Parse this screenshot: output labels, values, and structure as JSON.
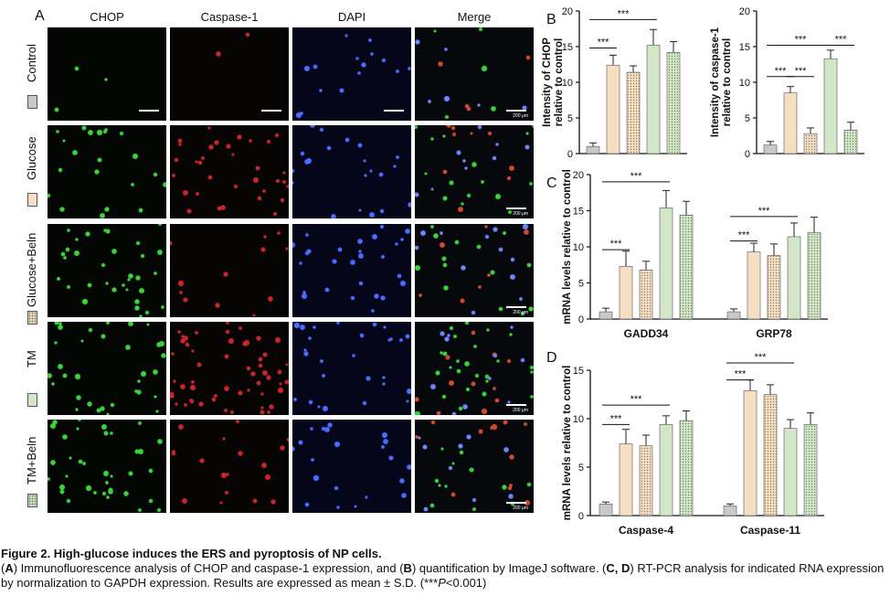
{
  "panel_a": {
    "letter": "A",
    "columns": [
      "CHOP",
      "Caspase-1",
      "DAPI",
      "Merge"
    ],
    "rows": [
      "Control",
      "Glucose",
      "Glucose+Beln",
      "TM",
      "TM+Beln"
    ],
    "scale_bar_label": "200 μm"
  },
  "groups": [
    {
      "name": "Control",
      "fill": "#c9c9c9",
      "pattern": "solid"
    },
    {
      "name": "Glucose",
      "fill": "#f4dfc3",
      "pattern": "solid"
    },
    {
      "name": "Glucose+Beln",
      "fill": "#f4dfc3",
      "pattern": "dots"
    },
    {
      "name": "TM",
      "fill": "#d3e7c8",
      "pattern": "solid"
    },
    {
      "name": "TM+Beln",
      "fill": "#d3e7c8",
      "pattern": "dots"
    }
  ],
  "captions": {
    "title": "Figure 2. High-glucose induces the ERS and pyroptosis of NP cells.",
    "body_parts": [
      {
        "text": "(",
        "bold": false,
        "italic": false
      },
      {
        "text": "A",
        "bold": true,
        "italic": false
      },
      {
        "text": ") Immunofluorescence analysis of CHOP and caspase-1 expression, and (",
        "bold": false,
        "italic": false
      },
      {
        "text": "B",
        "bold": true,
        "italic": false
      },
      {
        "text": ") quantification by ImageJ software. (",
        "bold": false,
        "italic": false
      },
      {
        "text": "C, D",
        "bold": true,
        "italic": false
      },
      {
        "text": ") RT-PCR analysis for indicated RNA expression by normalization to GAPDH expression. Results are expressed as mean ± S.D. (***",
        "bold": false,
        "italic": false
      },
      {
        "text": "P",
        "bold": false,
        "italic": true
      },
      {
        "text": "<0.001)",
        "bold": false,
        "italic": false
      }
    ]
  },
  "chart_data": [
    {
      "id": "B1",
      "panel_letter": "B",
      "type": "bar",
      "ylabel": "Intensity of CHOP relative to control",
      "ylim": [
        0,
        20
      ],
      "yticks": [
        0,
        5,
        10,
        15,
        20
      ],
      "groups": [
        {
          "categories": [
            "Control",
            "Glucose",
            "Glucose+Beln",
            "TM",
            "TM+Beln"
          ],
          "values": [
            1.0,
            12.4,
            11.4,
            15.2,
            14.2
          ],
          "errors": [
            0.5,
            1.4,
            0.9,
            2.2,
            1.5
          ]
        }
      ],
      "significance": [
        {
          "text": "***",
          "from": 0,
          "to": 1,
          "y": 14.8
        },
        {
          "text": "***",
          "from": 0,
          "to": 3,
          "y": 18.8
        }
      ]
    },
    {
      "id": "B2",
      "type": "bar",
      "ylabel": "Intensity of caspase-1 relative to control",
      "ylim": [
        0,
        20
      ],
      "yticks": [
        0,
        5,
        10,
        15,
        20
      ],
      "groups": [
        {
          "categories": [
            "Control",
            "Glucose",
            "Glucose+Beln",
            "TM",
            "TM+Beln"
          ],
          "values": [
            1.2,
            8.5,
            2.8,
            13.3,
            3.3
          ],
          "errors": [
            0.5,
            0.9,
            0.8,
            1.2,
            1.1
          ]
        }
      ],
      "significance": [
        {
          "text": "***",
          "from": 0,
          "to": 1,
          "y": 10.8
        },
        {
          "text": "***",
          "from": 1,
          "to": 2,
          "y": 10.8
        },
        {
          "text": "***",
          "from": 0,
          "to": 3,
          "y": 15.2
        },
        {
          "text": "***",
          "from": 3,
          "to": 4,
          "y": 15.2
        }
      ]
    },
    {
      "id": "C",
      "panel_letter": "C",
      "type": "bar",
      "ylabel": "mRNA levels relative to control",
      "ylim": [
        0,
        20
      ],
      "yticks": [
        0,
        5,
        10,
        15,
        20
      ],
      "groups": [
        {
          "label": "GADD34",
          "categories": [
            "Control",
            "Glucose",
            "Glucose+Beln",
            "TM",
            "TM+Beln"
          ],
          "values": [
            1.0,
            7.3,
            6.8,
            15.4,
            14.4
          ],
          "errors": [
            0.5,
            2.1,
            1.2,
            2.4,
            1.9
          ]
        },
        {
          "label": "GRP78",
          "categories": [
            "Control",
            "Glucose",
            "Glucose+Beln",
            "TM",
            "TM+Beln"
          ],
          "values": [
            1.0,
            9.3,
            8.8,
            11.4,
            12.0
          ],
          "errors": [
            0.4,
            1.2,
            1.6,
            1.9,
            2.1
          ]
        }
      ],
      "significance": [
        {
          "text": "***",
          "group": 0,
          "from": 0,
          "to": 1,
          "y": 9.6
        },
        {
          "text": "***",
          "group": 0,
          "from": 0,
          "to": 3,
          "y": 19.0
        },
        {
          "text": "***",
          "group": 1,
          "from": 0,
          "to": 1,
          "y": 10.8
        },
        {
          "text": "***",
          "group": 1,
          "from": 0,
          "to": 3,
          "y": 14.2
        }
      ]
    },
    {
      "id": "D",
      "panel_letter": "D",
      "type": "bar",
      "ylabel": "mRNA levels relative to control",
      "ylim": [
        0,
        15
      ],
      "yticks": [
        0,
        5,
        10,
        15
      ],
      "groups": [
        {
          "label": "Caspase-4",
          "categories": [
            "Control",
            "Glucose",
            "Glucose+Beln",
            "TM",
            "TM+Beln"
          ],
          "values": [
            1.2,
            7.4,
            7.2,
            9.4,
            9.8
          ],
          "errors": [
            0.2,
            1.5,
            1.1,
            0.9,
            1.0
          ]
        },
        {
          "label": "Caspase-11",
          "categories": [
            "Control",
            "Glucose",
            "Glucose+Beln",
            "TM",
            "TM+Beln"
          ],
          "values": [
            1.0,
            12.9,
            12.5,
            9.0,
            9.4
          ],
          "errors": [
            0.2,
            1.1,
            1.0,
            0.9,
            1.2
          ]
        }
      ],
      "significance": [
        {
          "text": "***",
          "group": 0,
          "from": 0,
          "to": 1,
          "y": 9.4
        },
        {
          "text": "***",
          "group": 0,
          "from": 0,
          "to": 3,
          "y": 11.4
        },
        {
          "text": "***",
          "group": 1,
          "from": 0,
          "to": 1,
          "y": 14.0
        },
        {
          "text": "***",
          "group": 1,
          "from": 0,
          "to": 3,
          "y": 16.0
        }
      ]
    }
  ]
}
